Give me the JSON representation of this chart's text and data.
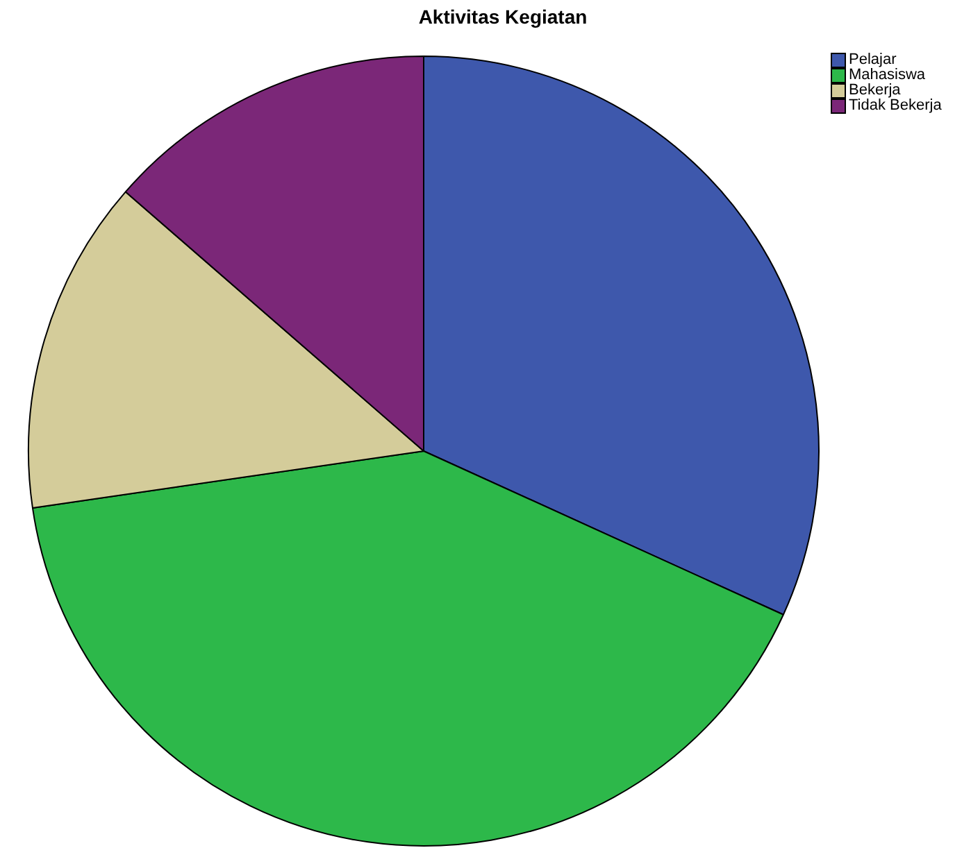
{
  "chart_data": {
    "type": "pie",
    "title": "Aktivitas Kegiatan",
    "categories": [
      "Pelajar",
      "Mahasiswa",
      "Bekerja",
      "Tidak Bekerja"
    ],
    "values": [
      31.8,
      40.9,
      13.7,
      13.6
    ],
    "colors": [
      "#3e58ac",
      "#2db84a",
      "#d4cc9a",
      "#7b2778"
    ],
    "legend": "top right"
  }
}
